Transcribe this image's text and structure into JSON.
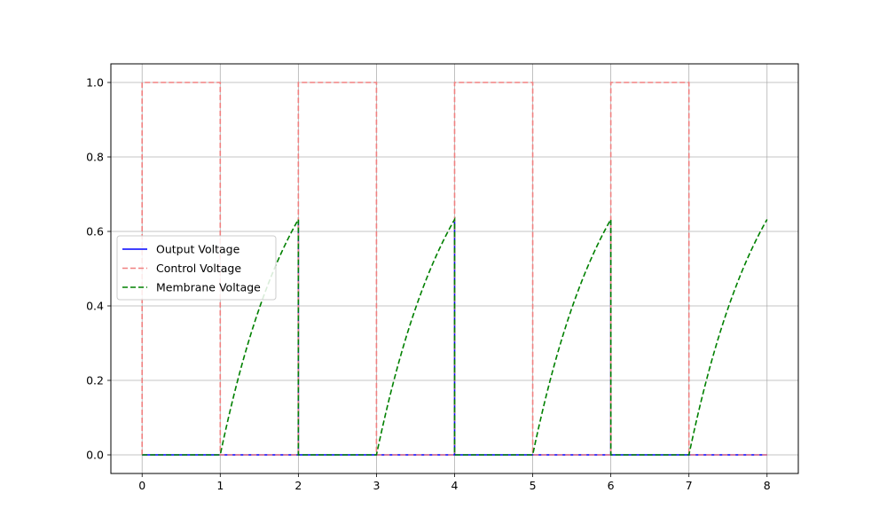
{
  "chart_data": {
    "type": "line",
    "title": "",
    "xlabel": "",
    "ylabel": "",
    "xlim": [
      -0.4,
      8.4
    ],
    "ylim": [
      -0.05,
      1.05
    ],
    "x_ticks": [
      0,
      1,
      2,
      3,
      4,
      5,
      6,
      7,
      8
    ],
    "x_tick_labels": [
      "0",
      "1",
      "2",
      "3",
      "4",
      "5",
      "6",
      "7",
      "8"
    ],
    "y_ticks": [
      0.0,
      0.2,
      0.4,
      0.6,
      0.8,
      1.0
    ],
    "y_tick_labels": [
      "0.0",
      "0.2",
      "0.4",
      "0.6",
      "0.8",
      "1.0"
    ],
    "grid": true,
    "legend": {
      "placement": "center-left"
    },
    "series": [
      {
        "name": "Output Voltage",
        "color": "#0000ff",
        "style": "solid",
        "x": [
          0,
          2,
          2,
          2,
          4,
          4,
          4,
          6,
          6,
          6,
          8
        ],
        "y": [
          0,
          0,
          0.63,
          0,
          0,
          0.63,
          0,
          0,
          0.63,
          0,
          0
        ]
      },
      {
        "name": "Control Voltage",
        "color": "#f08080",
        "style": "dashed",
        "x": [
          0,
          0,
          1,
          1,
          2,
          2,
          3,
          3,
          4,
          4,
          5,
          5,
          6,
          6,
          7,
          7,
          8
        ],
        "y": [
          0,
          1,
          1,
          0,
          0,
          1,
          1,
          0,
          0,
          1,
          1,
          0,
          0,
          1,
          1,
          0,
          0
        ]
      },
      {
        "name": "Membrane Voltage",
        "color": "#008000",
        "style": "dashed",
        "x": [
          0,
          1,
          1.25,
          1.5,
          1.75,
          2,
          2,
          3,
          3.25,
          3.5,
          3.75,
          4,
          4,
          5,
          5.25,
          5.5,
          5.75,
          6,
          6,
          7,
          7.25,
          7.5,
          7.75,
          8
        ],
        "y": [
          0,
          0,
          0.221,
          0.393,
          0.528,
          0.632,
          0,
          0,
          0.221,
          0.393,
          0.528,
          0.632,
          0,
          0,
          0.221,
          0.393,
          0.528,
          0.632,
          0,
          0,
          0.221,
          0.393,
          0.528,
          0.632
        ]
      }
    ]
  }
}
